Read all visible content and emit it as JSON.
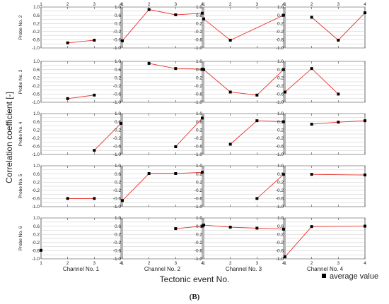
{
  "chart_data": {
    "type": "line",
    "ylabel": "Correlation coefficient [-]",
    "xlabel": "Tectonic event No.",
    "figure_label": "(B)",
    "legend": {
      "label": "average value",
      "placement": "bottom-right"
    },
    "columns": [
      "Channel No. 1",
      "Channel No. 2",
      "Channel No. 3",
      "Channel No. 4"
    ],
    "rows": [
      "Probe No. 2",
      "Probe No. 3",
      "Probe No. 4",
      "Probe No. 5",
      "Probe No. 6"
    ],
    "xlim": [
      1,
      4
    ],
    "ylim": [
      -1.0,
      1.0
    ],
    "xticks": [
      1,
      2,
      3,
      4
    ],
    "yticks": [
      1.0,
      0.6,
      0.2,
      -0.2,
      -0.6,
      -1.0
    ],
    "ytick_labels": [
      "1.0",
      "0.6",
      "0.2",
      "-0.2",
      "-0.6",
      "-1.0"
    ],
    "grid": true,
    "colors": {
      "line": "#e8302a",
      "marker": "#000000"
    },
    "panels": [
      [
        {
          "x": [
            2,
            3
          ],
          "y": [
            -0.75,
            -0.62
          ]
        },
        {
          "x": [
            1,
            2,
            3,
            4
          ],
          "y": [
            -0.65,
            0.88,
            0.62,
            0.7
          ]
        },
        {
          "x": [
            1,
            2,
            4
          ],
          "y": [
            0.42,
            -0.62,
            0.6
          ]
        },
        {
          "x": [
            2,
            3,
            4
          ],
          "y": [
            0.5,
            -0.62,
            0.72
          ]
        }
      ],
      [
        {
          "x": [
            2,
            3
          ],
          "y": [
            -0.82,
            -0.65
          ]
        },
        {
          "x": [
            2,
            3,
            4
          ],
          "y": [
            0.9,
            0.65,
            0.62
          ]
        },
        {
          "x": [
            1,
            2,
            3,
            4
          ],
          "y": [
            0.6,
            -0.5,
            -0.65,
            0.6
          ]
        },
        {
          "x": [
            1,
            2,
            3
          ],
          "y": [
            -0.5,
            0.65,
            -0.6
          ]
        }
      ],
      [
        {
          "x": [
            3,
            4
          ],
          "y": [
            -0.8,
            0.52
          ]
        },
        {
          "x": [
            3,
            4
          ],
          "y": [
            -0.62,
            0.78
          ]
        },
        {
          "x": [
            2,
            3,
            4
          ],
          "y": [
            -0.5,
            0.65,
            0.6
          ]
        },
        {
          "x": [
            2,
            3,
            4
          ],
          "y": [
            0.48,
            0.58,
            0.65
          ]
        }
      ],
      [
        {
          "x": [
            2,
            3
          ],
          "y": [
            -0.6,
            -0.6
          ]
        },
        {
          "x": [
            1,
            2,
            3,
            4
          ],
          "y": [
            -0.7,
            0.62,
            0.62,
            0.68
          ]
        },
        {
          "x": [
            3,
            4
          ],
          "y": [
            -0.6,
            0.58
          ]
        },
        {
          "x": [
            2,
            4
          ],
          "y": [
            0.58,
            0.55
          ]
        }
      ],
      [
        {
          "x": [
            1
          ],
          "y": [
            -0.58
          ]
        },
        {
          "x": [
            3,
            4
          ],
          "y": [
            0.48,
            0.6
          ]
        },
        {
          "x": [
            1,
            2,
            3,
            4
          ],
          "y": [
            0.65,
            0.55,
            0.5,
            0.45
          ]
        },
        {
          "x": [
            1,
            2,
            4
          ],
          "y": [
            -0.9,
            0.58,
            0.6
          ]
        }
      ]
    ]
  }
}
